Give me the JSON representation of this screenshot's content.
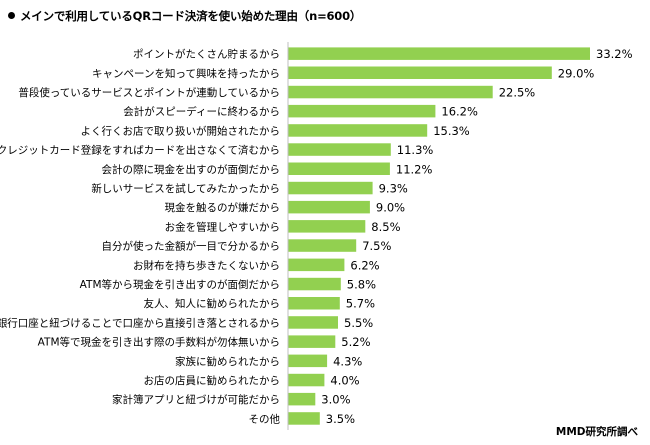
{
  "chart_data": {
    "type": "bar",
    "orientation": "horizontal",
    "title": "メインで利用しているQRコード決済を使い始めた理由（n=600）",
    "categories": [
      "ポイントがたくさん貯まるから",
      "キャンペーンを知って興味を持ったから",
      "普段使っているサービスとポイントが連動しているから",
      "会計がスピーディーに終わるから",
      "よく行くお店で取り扱いが開始されたから",
      "クレジットカード登録をすればカードを出さなくて済むから",
      "会計の際に現金を出すのが面倒だから",
      "新しいサービスを試してみたかったから",
      "現金を触るのが嫌だから",
      "お金を管理しやすいから",
      "自分が使った金額が一目で分かるから",
      "お財布を持ち歩きたくないから",
      "ATM等から現金を引き出すのが面倒だから",
      "友人、知人に勧められたから",
      "銀行口座と紐づけることで口座から直接引き落とされるから",
      "ATM等で現金を引き出す際の手数料が勿体無いから",
      "家族に勧められたから",
      "お店の店員に勧められたから",
      "家計簿アプリと紐づけが可能だから",
      "その他"
    ],
    "values": [
      33.2,
      29.0,
      22.5,
      16.2,
      15.3,
      11.3,
      11.2,
      9.3,
      9.0,
      8.5,
      7.5,
      6.2,
      5.8,
      5.7,
      5.5,
      5.2,
      4.3,
      4.0,
      3.0,
      3.5
    ],
    "value_labels": [
      "33.2%",
      "29.0%",
      "22.5%",
      "16.2%",
      "15.3%",
      "11.3%",
      "11.2%",
      "9.3%",
      "9.0%",
      "8.5%",
      "7.5%",
      "6.2%",
      "5.8%",
      "5.7%",
      "5.5%",
      "5.2%",
      "4.3%",
      "4.0%",
      "3.0%",
      "3.5%"
    ],
    "xlim": [
      0,
      40
    ],
    "bar_color": "#92d050",
    "axis_color": "#bfbfbf",
    "grid": false
  },
  "footer": {
    "credit": "MMD研究所調べ"
  }
}
